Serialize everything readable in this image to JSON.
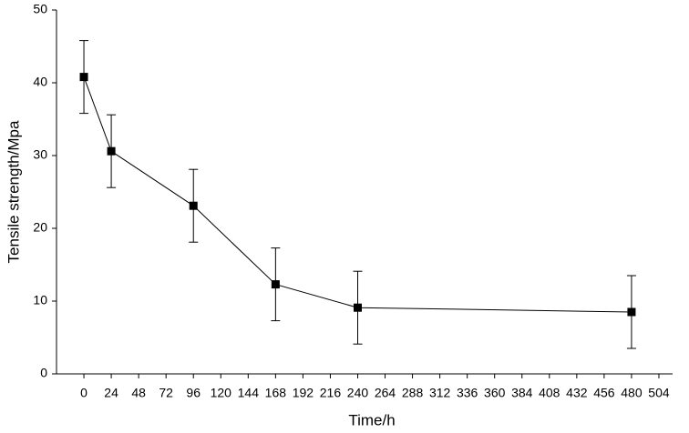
{
  "chart_data": {
    "type": "line",
    "xlabel": "Time/h",
    "ylabel": "Tensile strength/Mpa",
    "series": [
      {
        "color": "#000000",
        "x": [
          0,
          24,
          96,
          168,
          240,
          480
        ],
        "values": [
          40.8,
          30.6,
          23.1,
          12.3,
          9.1,
          8.5
        ],
        "errors": [
          5,
          5,
          5,
          5,
          5,
          5
        ]
      }
    ],
    "xlim": [
      -24,
      516
    ],
    "xticks": [
      0,
      24,
      48,
      72,
      96,
      120,
      144,
      168,
      192,
      216,
      240,
      264,
      288,
      312,
      336,
      360,
      384,
      408,
      432,
      456,
      480,
      504
    ],
    "ylim": [
      0,
      50
    ],
    "yticks": [
      0,
      10,
      20,
      30,
      40,
      50
    ]
  }
}
